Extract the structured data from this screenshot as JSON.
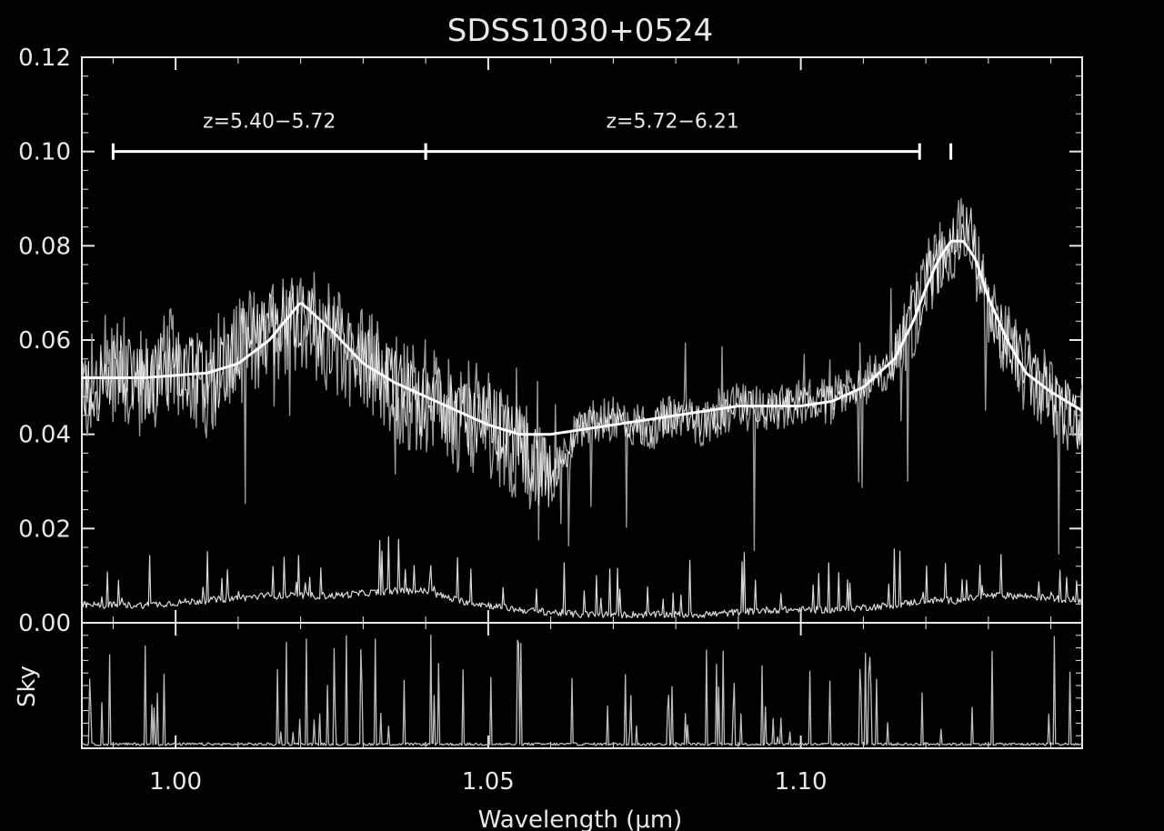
{
  "chart_data": {
    "type": "line",
    "title": "SDSS1030+0524",
    "xlabel": "Wavelength (μm)",
    "ylabel": "",
    "sky_panel_label": "Sky",
    "xlim": [
      0.985,
      1.145
    ],
    "ylim": [
      0.0,
      0.12
    ],
    "x_ticks": [
      1.0,
      1.05,
      1.1
    ],
    "x_tick_labels": [
      "1.00",
      "1.05",
      "1.10"
    ],
    "y_ticks": [
      0.0,
      0.02,
      0.04,
      0.06,
      0.08,
      0.1,
      0.12
    ],
    "y_tick_labels": [
      "0.00",
      "0.02",
      "0.04",
      "0.06",
      "0.08",
      "0.10",
      "0.12"
    ],
    "grid": false,
    "annotations": [
      {
        "text": "z=5.40−5.72",
        "x_range": [
          0.99,
          1.04
        ],
        "y": 0.1
      },
      {
        "text": "z=5.72−6.21",
        "x_range": [
          1.04,
          1.119
        ],
        "y": 0.1
      },
      {
        "text": "",
        "x_marker": 1.124,
        "y": 0.1
      }
    ],
    "series": [
      {
        "name": "",
        "role": "continuum-fit",
        "x": [
          0.985,
          0.995,
          1.005,
          1.01,
          1.015,
          1.02,
          1.025,
          1.03,
          1.035,
          1.04,
          1.045,
          1.05,
          1.055,
          1.06,
          1.065,
          1.07,
          1.075,
          1.08,
          1.085,
          1.09,
          1.095,
          1.1,
          1.105,
          1.11,
          1.115,
          1.118,
          1.12,
          1.122,
          1.124,
          1.126,
          1.128,
          1.13,
          1.133,
          1.136,
          1.14,
          1.145
        ],
        "y": [
          0.052,
          0.052,
          0.053,
          0.055,
          0.06,
          0.068,
          0.062,
          0.055,
          0.051,
          0.048,
          0.045,
          0.042,
          0.04,
          0.04,
          0.041,
          0.042,
          0.043,
          0.044,
          0.045,
          0.046,
          0.046,
          0.046,
          0.047,
          0.05,
          0.056,
          0.064,
          0.071,
          0.077,
          0.081,
          0.081,
          0.077,
          0.069,
          0.06,
          0.053,
          0.049,
          0.045
        ]
      },
      {
        "name": "",
        "role": "spectrum",
        "x": [
          0.985,
          0.99,
          0.995,
          1.0,
          1.005,
          1.01,
          1.015,
          1.02,
          1.025,
          1.03,
          1.035,
          1.04,
          1.045,
          1.05,
          1.055,
          1.06,
          1.065,
          1.07,
          1.075,
          1.08,
          1.085,
          1.09,
          1.095,
          1.1,
          1.105,
          1.11,
          1.115,
          1.12,
          1.124,
          1.127,
          1.13,
          1.135,
          1.14,
          1.145
        ],
        "y": [
          0.048,
          0.054,
          0.05,
          0.056,
          0.051,
          0.058,
          0.062,
          0.066,
          0.06,
          0.056,
          0.05,
          0.047,
          0.044,
          0.043,
          0.037,
          0.03,
          0.042,
          0.043,
          0.041,
          0.044,
          0.042,
          0.046,
          0.045,
          0.047,
          0.047,
          0.051,
          0.055,
          0.072,
          0.08,
          0.083,
          0.066,
          0.055,
          0.048,
          0.042
        ]
      },
      {
        "name": "",
        "role": "noise",
        "x": [
          0.985,
          0.995,
          1.005,
          1.015,
          1.025,
          1.035,
          1.04,
          1.045,
          1.055,
          1.065,
          1.075,
          1.085,
          1.095,
          1.105,
          1.115,
          1.12,
          1.125,
          1.13,
          1.135,
          1.145
        ],
        "y": [
          0.003,
          0.003,
          0.004,
          0.005,
          0.005,
          0.006,
          0.006,
          0.004,
          0.002,
          0.001,
          0.001,
          0.001,
          0.002,
          0.002,
          0.003,
          0.004,
          0.004,
          0.005,
          0.005,
          0.004
        ]
      }
    ]
  }
}
